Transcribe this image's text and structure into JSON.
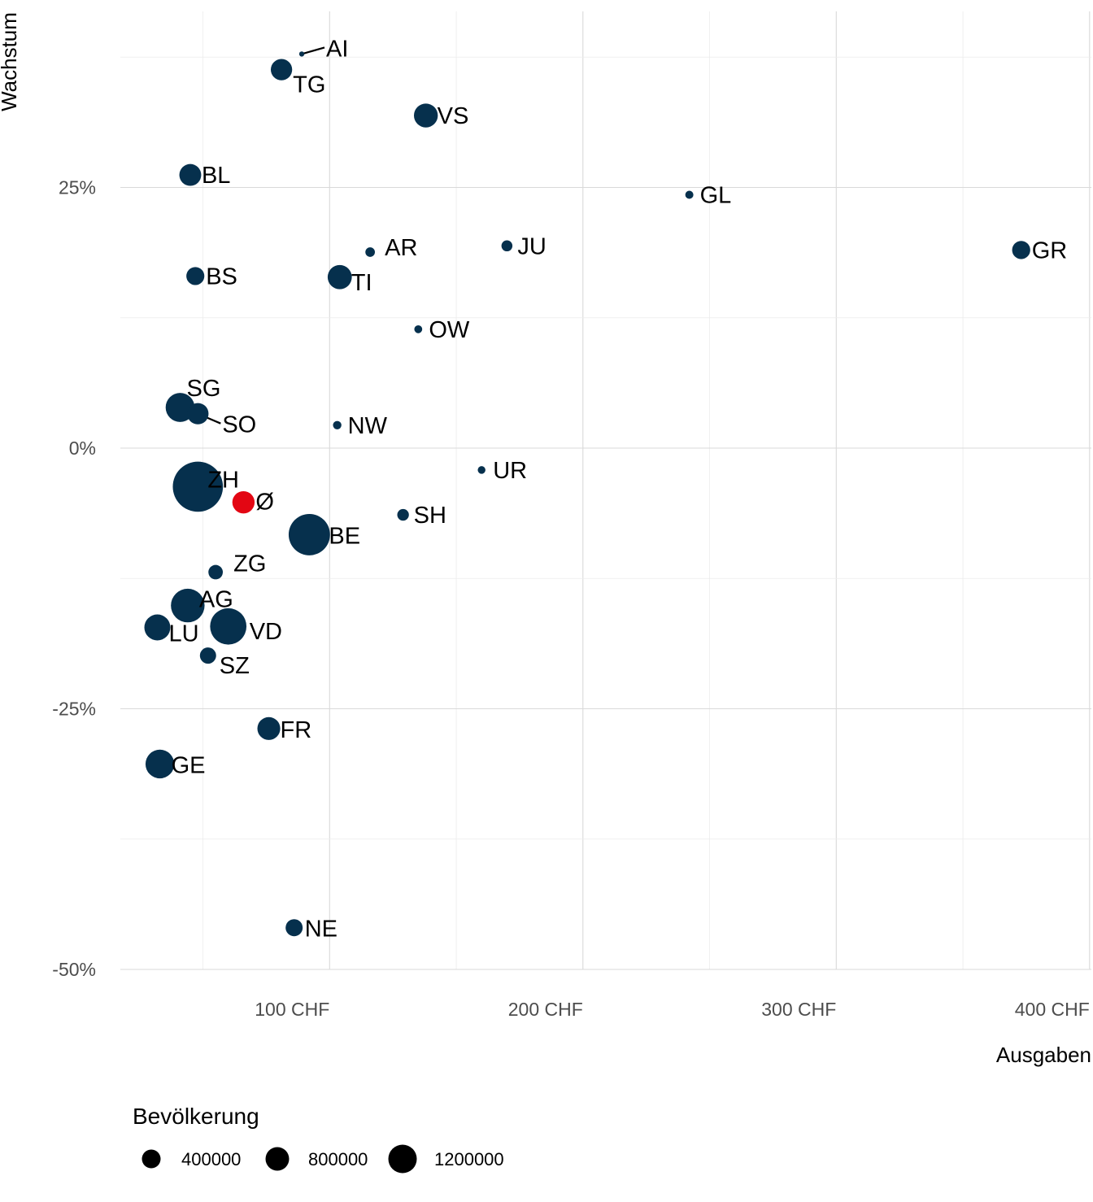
{
  "chart_data": {
    "type": "scatter",
    "xlabel": "Ausgaben",
    "ylabel": "Wachstum",
    "xlim": [
      17,
      400
    ],
    "ylim": [
      -50,
      30
    ],
    "x_ticks": [
      100,
      200,
      300,
      400
    ],
    "x_tick_labels": [
      "100 CHF",
      "200 CHF",
      "300 CHF",
      "400 CHF"
    ],
    "y_ticks": [
      25,
      0,
      -25,
      -50
    ],
    "y_tick_labels": [
      "25%",
      "0%",
      "-25%",
      "-50%"
    ],
    "grid": true,
    "point_color": "#06304d",
    "highlight_color": "#e30613",
    "legend": {
      "title": "Bevölkerung",
      "position": "bottom-left",
      "entries": [
        {
          "label": "400000",
          "value": 400000
        },
        {
          "label": "800000",
          "value": 800000
        },
        {
          "label": "1200000",
          "value": 1200000
        }
      ]
    },
    "points": [
      {
        "label": "AI",
        "x": 89,
        "y": 37.8,
        "pop": 16000,
        "highlight": false
      },
      {
        "label": "TG",
        "x": 81,
        "y": 36.3,
        "pop": 276000,
        "highlight": false
      },
      {
        "label": "VS",
        "x": 138,
        "y": 31.9,
        "pop": 345000,
        "highlight": false
      },
      {
        "label": "BL",
        "x": 45,
        "y": 26.2,
        "pop": 289000,
        "highlight": false
      },
      {
        "label": "GL",
        "x": 242,
        "y": 24.3,
        "pop": 40000,
        "highlight": false
      },
      {
        "label": "AR",
        "x": 116,
        "y": 18.8,
        "pop": 55000,
        "highlight": false
      },
      {
        "label": "JU",
        "x": 170,
        "y": 19.4,
        "pop": 73000,
        "highlight": false
      },
      {
        "label": "GR",
        "x": 373,
        "y": 19.0,
        "pop": 199000,
        "highlight": false
      },
      {
        "label": "BS",
        "x": 47,
        "y": 16.5,
        "pop": 196000,
        "highlight": false
      },
      {
        "label": "TI",
        "x": 104,
        "y": 16.4,
        "pop": 353000,
        "highlight": false
      },
      {
        "label": "OW",
        "x": 135,
        "y": 11.4,
        "pop": 38000,
        "highlight": false
      },
      {
        "label": "SG",
        "x": 41,
        "y": 3.9,
        "pop": 508000,
        "highlight": false
      },
      {
        "label": "SO",
        "x": 48,
        "y": 3.3,
        "pop": 275000,
        "highlight": false
      },
      {
        "label": "NW",
        "x": 103,
        "y": 2.2,
        "pop": 43000,
        "highlight": false
      },
      {
        "label": "UR",
        "x": 160,
        "y": -2.1,
        "pop": 36000,
        "highlight": false
      },
      {
        "label": "ZH",
        "x": 48,
        "y": -3.7,
        "pop": 1521000,
        "highlight": false
      },
      {
        "label": "Ø",
        "x": 66,
        "y": -5.2,
        "pop": 300000,
        "highlight": true
      },
      {
        "label": "SH",
        "x": 129,
        "y": -6.4,
        "pop": 82000,
        "highlight": false
      },
      {
        "label": "BE",
        "x": 92,
        "y": -8.3,
        "pop": 1034000,
        "highlight": false
      },
      {
        "label": "ZG",
        "x": 55,
        "y": -11.9,
        "pop": 126000,
        "highlight": false
      },
      {
        "label": "AG",
        "x": 44,
        "y": -15.1,
        "pop": 685000,
        "highlight": false
      },
      {
        "label": "LU",
        "x": 32,
        "y": -17.2,
        "pop": 409000,
        "highlight": false
      },
      {
        "label": "VD",
        "x": 60,
        "y": -17.1,
        "pop": 799000,
        "highlight": false
      },
      {
        "label": "SZ",
        "x": 52,
        "y": -19.9,
        "pop": 159000,
        "highlight": false
      },
      {
        "label": "FR",
        "x": 76,
        "y": -26.9,
        "pop": 316000,
        "highlight": false
      },
      {
        "label": "GE",
        "x": 33,
        "y": -30.3,
        "pop": 499000,
        "highlight": false
      },
      {
        "label": "NE",
        "x": 86,
        "y": -46.0,
        "pop": 176000,
        "highlight": false
      }
    ]
  }
}
